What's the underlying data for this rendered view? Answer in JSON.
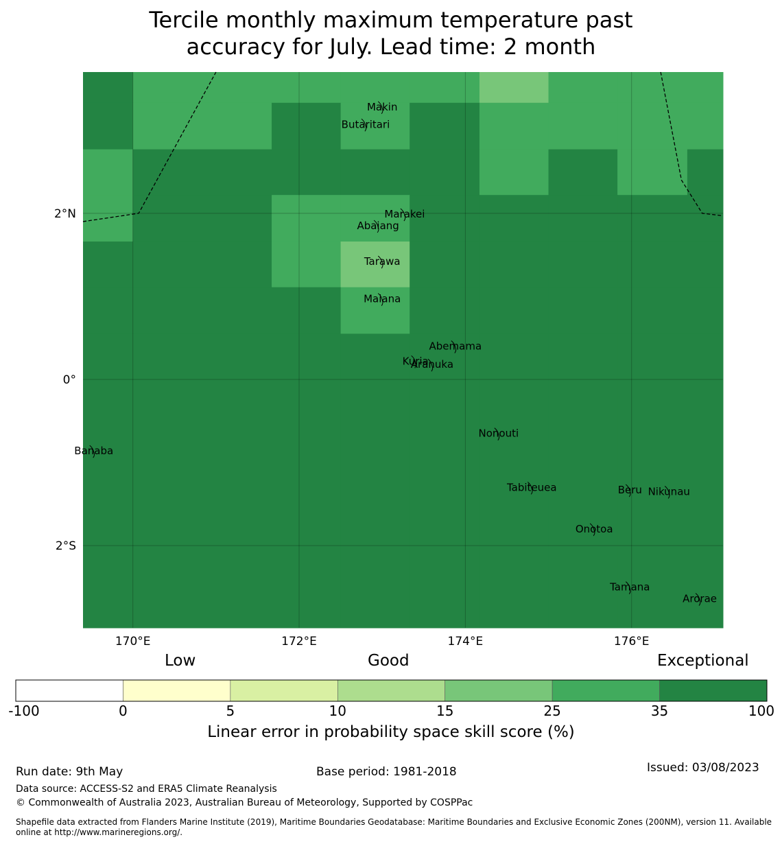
{
  "title": {
    "line1": "Tercile monthly maximum temperature past",
    "line2": "accuracy for July. Lead time: 2 month"
  },
  "map": {
    "lon_range": [
      169.4,
      177.1
    ],
    "lat_range": [
      -2.99,
      3.7
    ],
    "lon_ticks": [
      {
        "value": 170,
        "label": "170°E"
      },
      {
        "value": 172,
        "label": "172°E"
      },
      {
        "value": 174,
        "label": "174°E"
      },
      {
        "value": 176,
        "label": "176°E"
      }
    ],
    "lat_ticks": [
      {
        "value": 2,
        "label": "2°N"
      },
      {
        "value": 0,
        "label": "0°"
      },
      {
        "value": -2,
        "label": "2°S"
      }
    ],
    "islands": [
      {
        "name": "Makin",
        "lon": 173.0,
        "lat": 3.28
      },
      {
        "name": "Butaritari",
        "lon": 172.8,
        "lat": 3.07
      },
      {
        "name": "Marakei",
        "lon": 173.27,
        "lat": 1.99
      },
      {
        "name": "Abaiang",
        "lon": 172.95,
        "lat": 1.85
      },
      {
        "name": "Tarawa",
        "lon": 173.0,
        "lat": 1.42
      },
      {
        "name": "Maiana",
        "lon": 173.0,
        "lat": 0.97
      },
      {
        "name": "Abemama",
        "lon": 173.88,
        "lat": 0.4
      },
      {
        "name": "Kuria",
        "lon": 173.4,
        "lat": 0.22
      },
      {
        "name": "Aranuka",
        "lon": 173.6,
        "lat": 0.18
      },
      {
        "name": "Nonouti",
        "lon": 174.4,
        "lat": -0.65
      },
      {
        "name": "Banaba",
        "lon": 169.53,
        "lat": -0.86
      },
      {
        "name": "Tabiteuea",
        "lon": 174.8,
        "lat": -1.3
      },
      {
        "name": "Beru",
        "lon": 175.98,
        "lat": -1.33
      },
      {
        "name": "Nikunau",
        "lon": 176.45,
        "lat": -1.35
      },
      {
        "name": "Onotoa",
        "lon": 175.55,
        "lat": -1.8
      },
      {
        "name": "Tamana",
        "lon": 175.98,
        "lat": -2.5
      },
      {
        "name": "Arorae",
        "lon": 176.82,
        "lat": -2.64
      }
    ],
    "skill_grid": {
      "lon_edges": [
        169.4,
        170.0,
        171.67,
        172.5,
        173.33,
        174.17,
        175.0,
        175.83,
        176.67,
        177.1
      ],
      "lat_edges": [
        3.7,
        3.33,
        2.77,
        2.22,
        1.66,
        1.11,
        0.55,
        -2.99
      ],
      "rows": [
        [
          "35-100",
          "25-35",
          "25-35",
          "25-35",
          "25-35",
          "15-25",
          "25-35",
          "25-35",
          "25-35"
        ],
        [
          "35-100",
          "25-35",
          "35-100",
          "25-35",
          "35-100",
          "25-35",
          "25-35",
          "25-35",
          "25-35"
        ],
        [
          "25-35",
          "35-100",
          "35-100",
          "35-100",
          "35-100",
          "25-35",
          "35-100",
          "25-35",
          "35-100"
        ],
        [
          "25-35",
          "35-100",
          "25-35",
          "25-35",
          "35-100",
          "35-100",
          "35-100",
          "35-100",
          "35-100"
        ],
        [
          "35-100",
          "35-100",
          "25-35",
          "15-25",
          "35-100",
          "35-100",
          "35-100",
          "35-100",
          "35-100"
        ],
        [
          "35-100",
          "35-100",
          "35-100",
          "25-35",
          "35-100",
          "35-100",
          "35-100",
          "35-100",
          "35-100"
        ],
        [
          "35-100",
          "35-100",
          "35-100",
          "35-100",
          "35-100",
          "35-100",
          "35-100",
          "35-100",
          "35-100"
        ]
      ]
    },
    "boundary_west": [
      [
        169.4,
        1.9
      ],
      [
        170.07,
        2.0
      ],
      [
        171.0,
        3.7
      ]
    ],
    "boundary_east": [
      [
        176.35,
        3.7
      ],
      [
        176.6,
        2.4
      ],
      [
        176.85,
        2.0
      ],
      [
        177.1,
        1.97
      ]
    ]
  },
  "legend": {
    "categories": [
      "Low",
      "Good",
      "Exceptional"
    ],
    "bins": [
      {
        "range": "-100-0",
        "color": "#ffffff"
      },
      {
        "range": "0-5",
        "color": "#ffffcc"
      },
      {
        "range": "5-10",
        "color": "#d9f0a3"
      },
      {
        "range": "10-15",
        "color": "#addd8e"
      },
      {
        "range": "15-25",
        "color": "#78c679"
      },
      {
        "range": "25-35",
        "color": "#41ab5d"
      },
      {
        "range": "35-100",
        "color": "#238443"
      }
    ],
    "ticks": [
      "-100",
      "0",
      "5",
      "10",
      "15",
      "25",
      "35",
      "100"
    ],
    "label": "Linear error in probability space skill score (%)"
  },
  "footer": {
    "run_date": "Run date: 9th May",
    "base_period": "Base period: 1981-2018",
    "issued": "Issued: 03/08/2023",
    "data_source": "Data source: ACCESS-S2 and ERA5 Climate Reanalysis",
    "copyright": "© Commonwealth of Australia 2023, Australian Bureau of Meteorology, Supported by COSPPac",
    "shapefile_line1": "Shapefile data extracted from Flanders Marine Institute (2019), Maritime Boundaries Geodatabase: Maritime Boundaries and Exclusive Economic Zones (200NM), version 11. Available",
    "shapefile_line2": "online at http://www.marineregions.org/."
  }
}
